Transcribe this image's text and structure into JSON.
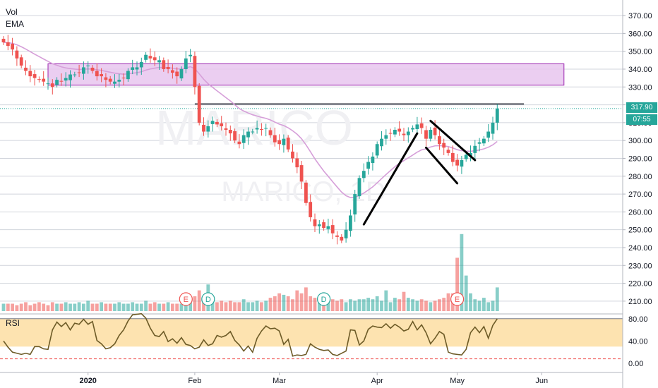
{
  "indicators": {
    "vol_label": "Vol",
    "ema_label": "EMA",
    "rsi_label": "RSI"
  },
  "watermark": {
    "large": "MARICO",
    "small": "MARICO, 1D"
  },
  "last_price_badge": {
    "price": "317.90",
    "timer": "07:55"
  },
  "event_markers": [
    {
      "label": "E",
      "type": "earnings",
      "bar": 41,
      "color": "#ef5350"
    },
    {
      "label": "D",
      "type": "dividend",
      "bar": 46,
      "color": "#26a69a"
    },
    {
      "label": "D",
      "type": "dividend",
      "bar": 72,
      "color": "#26a69a"
    },
    {
      "label": "E",
      "type": "earnings",
      "bar": 102,
      "color": "#ef5350"
    }
  ],
  "colors": {
    "up": "#26a69a",
    "down": "#ef5350",
    "ema": "#d69fd9",
    "zone_fill": "#e8c6ef",
    "zone_border": "#9c27b0",
    "rsi_line": "#6d5b27",
    "rsi_band": "#fde3b0",
    "axis_text": "#131722"
  },
  "chart_data": {
    "type": "candlestick",
    "symbol": "MARICO",
    "interval": "1D",
    "price_axis": {
      "ticks": [
        "370.00",
        "360.00",
        "350.00",
        "340.00",
        "330.00",
        "320.00",
        "310.00",
        "300.00",
        "290.00",
        "280.00",
        "270.00",
        "260.00",
        "250.00",
        "240.00",
        "230.00",
        "220.00",
        "210.00"
      ],
      "range": [
        206,
        374
      ]
    },
    "rsi_axis": {
      "ticks": [
        "80.00",
        "40.00",
        "0.00"
      ],
      "range": [
        0,
        90
      ],
      "band": [
        30,
        80
      ]
    },
    "time_axis": {
      "labels": [
        "2020",
        "Feb",
        "Mar",
        "Apr",
        "May",
        "Jun"
      ],
      "label_bars": [
        19,
        43,
        62,
        84,
        102,
        121
      ]
    },
    "resistance_zone": {
      "from_bar": 10,
      "to_bar": 126,
      "low": 331,
      "high": 343
    },
    "horizontal_line": {
      "price": 320.5,
      "from_bar": 43,
      "to_bar": 117
    },
    "trendlines": [
      {
        "from": [
          81,
          253
        ],
        "to": [
          93,
          304
        ]
      },
      {
        "from": [
          96,
          311
        ],
        "to": [
          106,
          289
        ]
      },
      {
        "from": [
          95,
          296
        ],
        "to": [
          102,
          276
        ]
      }
    ],
    "close": [
      355,
      353,
      351,
      346,
      342,
      339,
      336,
      335,
      334,
      333,
      332,
      330,
      334,
      333,
      335,
      337,
      337,
      338,
      341,
      342,
      339,
      336,
      336,
      334,
      333,
      333,
      334,
      335,
      339,
      341,
      341,
      344,
      348,
      346,
      345,
      345,
      340,
      340,
      338,
      336,
      340,
      346,
      348,
      330,
      310,
      305,
      308,
      311,
      309,
      308,
      306,
      304,
      300,
      298,
      303,
      305,
      305,
      307,
      306,
      307,
      303,
      299,
      298,
      301,
      295,
      290,
      285,
      277,
      265,
      257,
      252,
      253,
      251,
      252,
      248,
      246,
      244,
      250,
      258,
      270,
      279,
      283,
      288,
      291,
      298,
      301,
      303,
      304,
      306,
      305,
      303,
      305,
      307,
      309,
      307,
      301,
      306,
      303,
      298,
      296,
      293,
      288,
      286,
      289,
      292,
      293,
      297,
      299,
      301,
      305,
      310,
      317.9
    ],
    "volume": [
      5,
      5,
      5,
      4,
      5,
      6,
      4,
      5,
      6,
      5,
      4,
      6,
      5,
      5,
      6,
      5,
      5,
      6,
      5,
      7,
      5,
      5,
      6,
      5,
      5,
      5,
      6,
      5,
      5,
      6,
      5,
      5,
      7,
      5,
      6,
      5,
      5,
      6,
      5,
      5,
      5,
      6,
      7,
      10,
      14,
      8,
      18,
      8,
      6,
      7,
      6,
      7,
      6,
      6,
      8,
      6,
      6,
      7,
      6,
      7,
      9,
      10,
      12,
      11,
      10,
      8,
      14,
      12,
      16,
      10,
      9,
      8,
      8,
      8,
      8,
      7,
      8,
      6,
      8,
      7,
      8,
      8,
      9,
      8,
      10,
      7,
      14,
      6,
      9,
      8,
      13,
      9,
      8,
      7,
      8,
      7,
      6,
      7,
      8,
      9,
      12,
      12,
      36,
      52,
      24,
      12,
      8,
      7,
      9,
      6,
      7,
      16
    ],
    "rsi": [
      40,
      29,
      20,
      18,
      16,
      18,
      16,
      30,
      30,
      26,
      25,
      60,
      74,
      66,
      73,
      60,
      72,
      70,
      79,
      70,
      75,
      41,
      35,
      26,
      28,
      35,
      50,
      60,
      76,
      87,
      88,
      89,
      81,
      63,
      50,
      48,
      57,
      39,
      44,
      36,
      46,
      34,
      32,
      26,
      29,
      42,
      32,
      35,
      50,
      47,
      50,
      57,
      41,
      33,
      22,
      31,
      20,
      45,
      58,
      67,
      62,
      63,
      58,
      34,
      43,
      13,
      15,
      14,
      16,
      35,
      29,
      25,
      23,
      24,
      16,
      14,
      18,
      22,
      60,
      59,
      33,
      40,
      61,
      67,
      65,
      64,
      71,
      63,
      70,
      65,
      58,
      61,
      75,
      60,
      69,
      55,
      35,
      45,
      57,
      52,
      20,
      17,
      16,
      15,
      25,
      55,
      65,
      55,
      66,
      45,
      68,
      80
    ]
  }
}
